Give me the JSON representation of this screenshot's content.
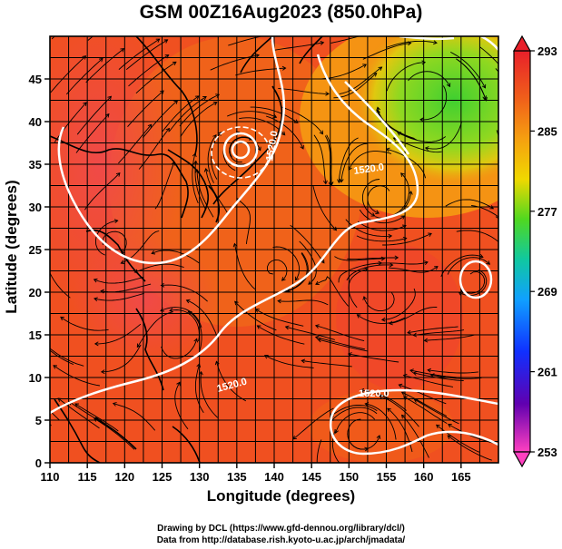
{
  "header": {
    "title": "GSM 00Z16Aug2023 (850.0hPa)"
  },
  "axes": {
    "xlabel": "Longitude (degrees)",
    "ylabel": "Latitude  (degrees)",
    "x_ticks": [
      "110",
      "115",
      "120",
      "125",
      "130",
      "135",
      "140",
      "145",
      "150",
      "155",
      "160",
      "165"
    ],
    "y_ticks": [
      "0",
      "5",
      "10",
      "15",
      "20",
      "25",
      "30",
      "35",
      "40",
      "45"
    ]
  },
  "colorbar": {
    "labels": [
      "293",
      "285",
      "277",
      "269",
      "261",
      "253"
    ],
    "colors": [
      "#e8202a",
      "#f07c0f",
      "#ffd200",
      "#55e01a",
      "#1ad090",
      "#20b8ff",
      "#1040ff",
      "#3000a0",
      "#c000d0",
      "#ff40c0"
    ]
  },
  "contours": {
    "labels": [
      "1520.0",
      "1520.0",
      "1520.0",
      "1520.0"
    ]
  },
  "credits": {
    "line1": "Drawing by DCL (https://www.gfd-dennou.org/library/dcl/)",
    "line2": "Data from http://database.rish.kyoto-u.ac.jp/arch/jmadata/"
  }
}
